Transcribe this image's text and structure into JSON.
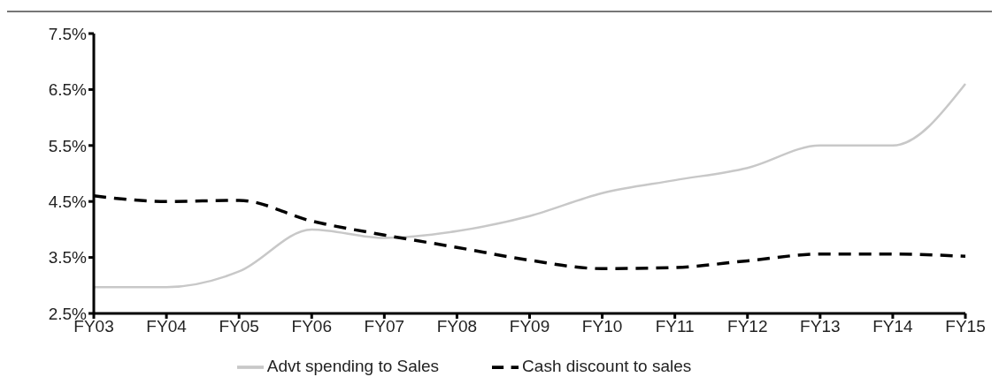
{
  "chart_data": {
    "type": "line",
    "categories": [
      "FY03",
      "FY04",
      "FY05",
      "FY06",
      "FY07",
      "FY08",
      "FY09",
      "FY10",
      "FY11",
      "FY12",
      "FY13",
      "FY14",
      "FY15"
    ],
    "series": [
      {
        "name": "Advt spending to Sales",
        "color": "#c8c8c8",
        "line_style": "solid",
        "values": [
          2.97,
          2.97,
          3.25,
          4.0,
          3.85,
          3.97,
          4.24,
          4.65,
          4.88,
          5.1,
          5.5,
          5.5,
          6.6
        ]
      },
      {
        "name": "Cash discount to sales",
        "color": "#000000",
        "line_style": "dashed",
        "values": [
          4.6,
          4.5,
          4.52,
          4.15,
          3.9,
          3.68,
          3.45,
          3.3,
          3.32,
          3.44,
          3.56,
          3.56,
          3.52
        ]
      }
    ],
    "ylim": [
      2.5,
      7.5
    ],
    "yticks": [
      {
        "value": 2.5,
        "label": "2.5%"
      },
      {
        "value": 3.5,
        "label": "3.5%"
      },
      {
        "value": 4.5,
        "label": "4.5%"
      },
      {
        "value": 5.5,
        "label": "5.5%"
      },
      {
        "value": 6.5,
        "label": "6.5%"
      },
      {
        "value": 7.5,
        "label": "7.5%"
      }
    ],
    "grid": false,
    "legend": "bottom",
    "marker": "none"
  }
}
